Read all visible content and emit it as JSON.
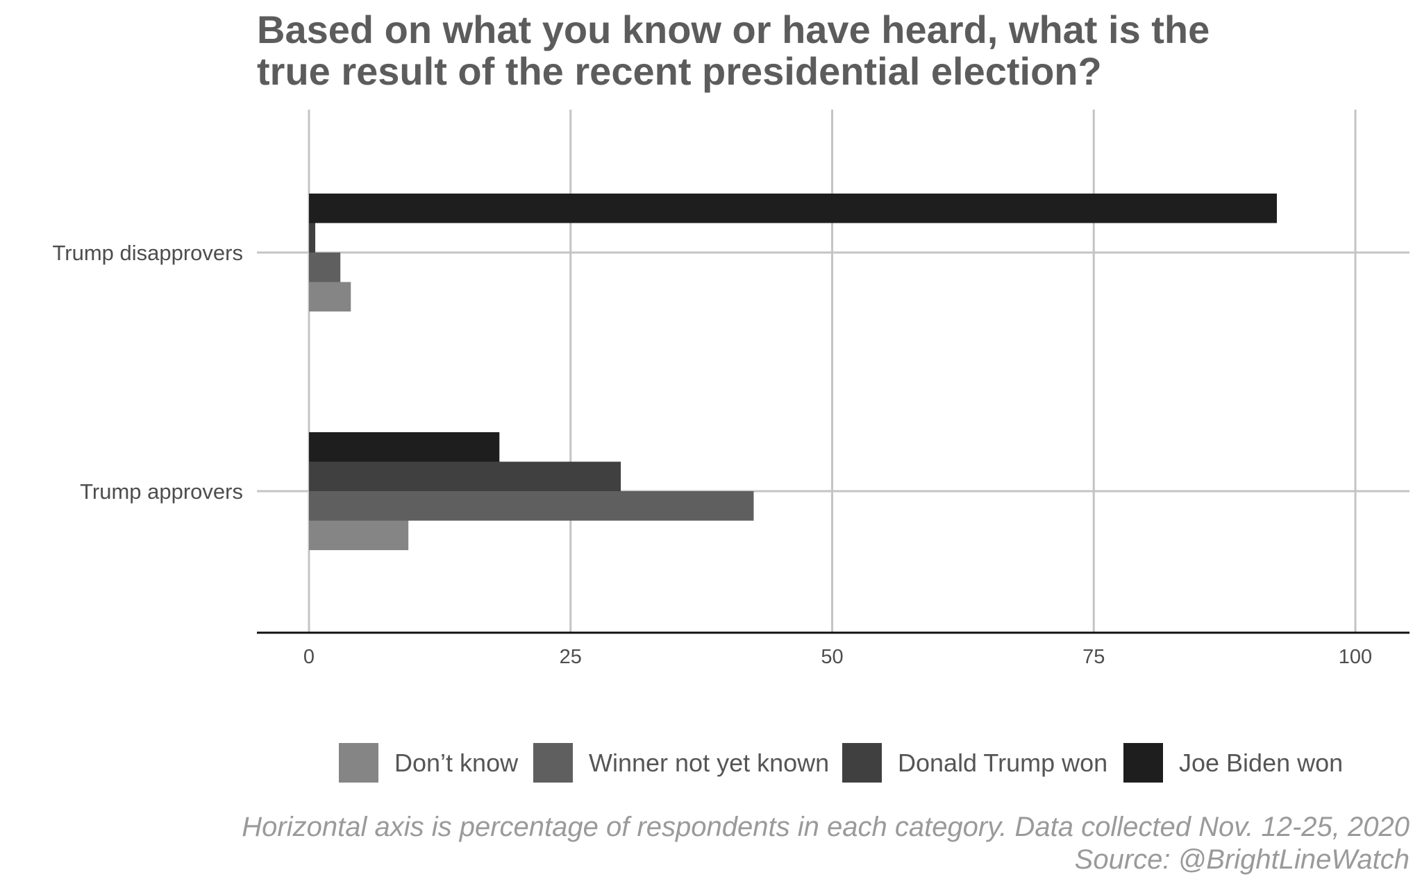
{
  "chart_data": {
    "type": "bar",
    "orientation": "horizontal",
    "title": [
      "Based on what you know or have heard, what is the",
      "true result of the recent presidential election?"
    ],
    "categories": [
      "Trump disapprovers",
      "Trump approvers"
    ],
    "series": [
      {
        "name": "Don’t know",
        "color": "#858585",
        "values": [
          4,
          9.5
        ]
      },
      {
        "name": "Winner not yet known",
        "color": "#5f5f5f",
        "values": [
          3,
          42.5
        ]
      },
      {
        "name": "Donald Trump won",
        "color": "#404040",
        "values": [
          0.6,
          29.8
        ]
      },
      {
        "name": "Joe Biden won",
        "color": "#1e1e1e",
        "values": [
          92.5,
          18.2
        ]
      }
    ],
    "xlim": [
      0,
      100
    ],
    "x_ticks": [
      0,
      25,
      50,
      75,
      100
    ],
    "grid": true,
    "legend_position": "bottom",
    "caption": [
      "Horizontal axis is percentage of respondents in each category. Data collected Nov. 12-25, 2020",
      "Source: @BrightLineWatch"
    ]
  }
}
